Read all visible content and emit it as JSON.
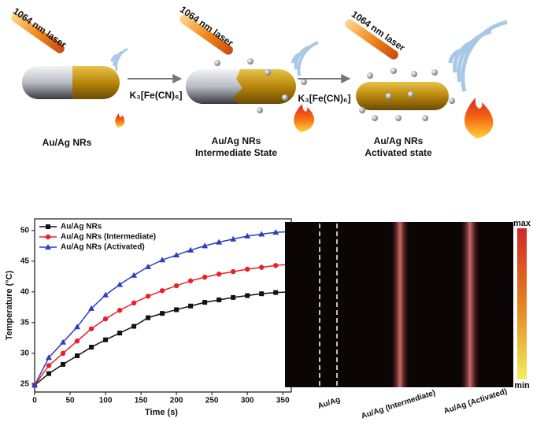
{
  "schematic": {
    "stages": [
      {
        "laser": "1064 nm laser",
        "label": [
          "Au/Ag  NRs"
        ]
      },
      {
        "laser": "1064 nm laser",
        "label": [
          "Au/Ag  NRs",
          "Intermediate State"
        ]
      },
      {
        "laser": "1064 nm laser",
        "label": [
          "Au/Ag NRs",
          "Activated state"
        ]
      }
    ],
    "reagents": [
      "K₃[Fe(CN)₆]",
      "K₃[Fe(CN)₆]"
    ]
  },
  "chart_data": {
    "type": "line",
    "x_label": "Time (s)",
    "y_label": "Temperature (°C)",
    "x": [
      0,
      20,
      40,
      60,
      80,
      100,
      120,
      140,
      160,
      180,
      200,
      220,
      240,
      260,
      280,
      300,
      320,
      340,
      360
    ],
    "series": [
      {
        "name": "Au/Ag NRs",
        "color": "#111111",
        "marker": "square",
        "values": [
          24.8,
          26.7,
          28.2,
          29.6,
          31.0,
          32.2,
          33.3,
          34.4,
          35.8,
          36.5,
          37.1,
          37.7,
          38.3,
          38.7,
          39.1,
          39.4,
          39.7,
          39.9,
          40.0
        ]
      },
      {
        "name": "Au/Ag NRs (Intermediate)",
        "color": "#e8202a",
        "marker": "circle",
        "values": [
          24.8,
          28.0,
          30.0,
          32.0,
          34.0,
          35.6,
          37.0,
          38.2,
          39.3,
          40.2,
          41.0,
          41.8,
          42.4,
          42.9,
          43.3,
          43.7,
          44.0,
          44.3,
          44.5
        ]
      },
      {
        "name": "Au/Ag NRs (Activated)",
        "color": "#2a3fbf",
        "marker": "triangle",
        "values": [
          24.8,
          29.3,
          31.8,
          34.3,
          37.3,
          39.5,
          41.2,
          42.7,
          44.1,
          45.2,
          46.0,
          46.8,
          47.5,
          48.1,
          48.6,
          49.1,
          49.4,
          49.7,
          49.8
        ]
      }
    ],
    "xlim": [
      0,
      362
    ],
    "ylim": [
      23.7,
      51.9
    ],
    "xticks": [
      0,
      50,
      100,
      150,
      200,
      250,
      300,
      350
    ],
    "yticks": [
      25,
      30,
      35,
      40,
      45,
      50
    ],
    "legend": "top-left"
  },
  "image": {
    "colorbar": {
      "max": "max",
      "min": "min"
    },
    "lanes": [
      "Au/Ag",
      "Au/Ag (Intermediate)",
      "Au/Ag (Activated)"
    ]
  }
}
